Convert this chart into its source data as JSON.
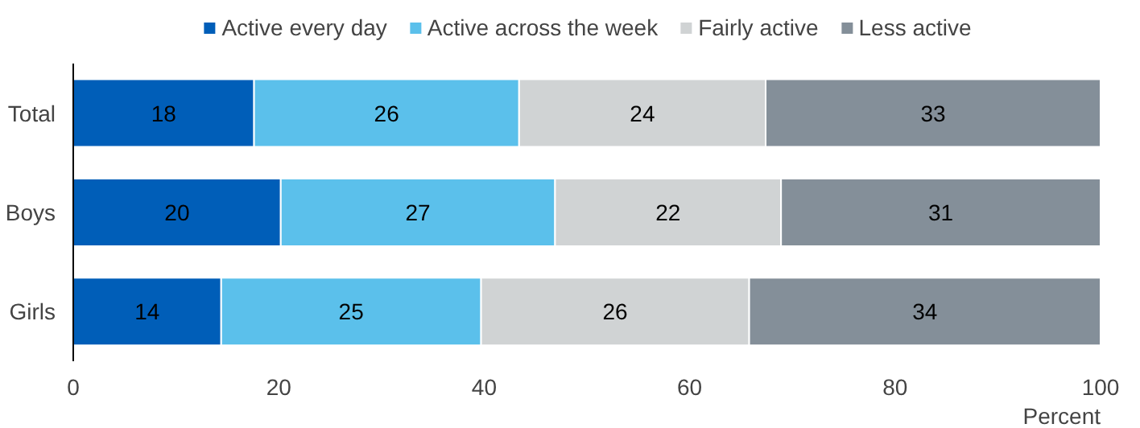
{
  "chart_data": {
    "type": "bar",
    "orientation": "horizontal",
    "stacked": true,
    "categories": [
      "Total",
      "Boys",
      "Girls"
    ],
    "series": [
      {
        "name": "Active every day",
        "color": "#005eb8",
        "values": [
          17.6,
          20.2,
          14.4
        ],
        "value_labels": [
          "18",
          "20",
          "14"
        ]
      },
      {
        "name": "Active across the week",
        "color": "#5bc0eb",
        "values": [
          25.8,
          26.7,
          25.3
        ],
        "value_labels": [
          "26",
          "27",
          "25"
        ]
      },
      {
        "name": "Fairly active",
        "color": "#d0d3d4",
        "values": [
          24.0,
          22.0,
          26.1
        ],
        "value_labels": [
          "24",
          "22",
          "26"
        ]
      },
      {
        "name": "Less active",
        "color": "#848f99",
        "values": [
          32.6,
          31.1,
          34.2
        ],
        "value_labels": [
          "33",
          "31",
          "34"
        ]
      }
    ],
    "xlim": [
      0,
      100
    ],
    "xticks": [
      0,
      20,
      40,
      60,
      80,
      100
    ],
    "xlabel": "Percent",
    "legend": "top",
    "grid": false
  }
}
